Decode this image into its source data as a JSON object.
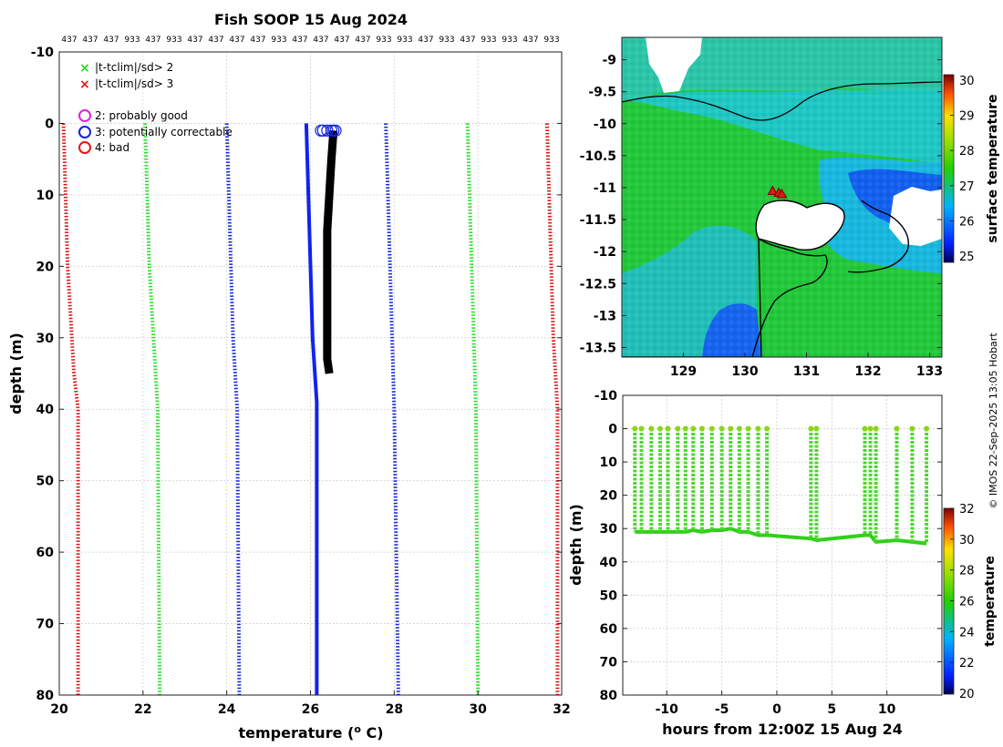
{
  "title": "Fish SOOP 15 Aug 2024",
  "top_labels": [
    "437",
    "437",
    "437",
    "933",
    "437",
    "933",
    "437",
    "437",
    "437",
    "437",
    "933",
    "437",
    "437",
    "437",
    "437",
    "933",
    "933",
    "437",
    "933",
    "437",
    "933",
    "933",
    "437",
    "933"
  ],
  "legend": {
    "flags": [
      {
        "label": "|t-tclim|/sd> 2",
        "color": "#22dd22",
        "marker": "x"
      },
      {
        "label": "|t-tclim|/sd> 3",
        "color": "#ee1111",
        "marker": "x"
      }
    ],
    "qc": [
      {
        "label": "2: probably good",
        "color": "#dd22dd"
      },
      {
        "label": "3: potentially correctable",
        "color": "#1122dd"
      },
      {
        "label": "4: bad",
        "color": "#ee1111"
      }
    ]
  },
  "credit": "© IMOS 22-Sep-2025 13:05 Hobart",
  "chart_data": [
    {
      "type": "line",
      "name": "profile",
      "xlabel": "temperature (",
      "xlabel_sup": "o",
      "xlabel_tail": " C)",
      "ylabel": "depth (m)",
      "xlim": [
        20,
        32
      ],
      "ylim": [
        -10,
        80
      ],
      "xticks": [
        20,
        22,
        24,
        26,
        28,
        30,
        32
      ],
      "yticks": [
        -10,
        0,
        10,
        20,
        30,
        40,
        50,
        60,
        70,
        80
      ],
      "grid": true,
      "series": [
        {
          "name": "climatology -3sd",
          "color": "#dd1111",
          "dotted": true,
          "depth": [
            0,
            10,
            20,
            30,
            35,
            40,
            80
          ],
          "temp": [
            20.1,
            20.15,
            20.2,
            20.3,
            20.35,
            20.45,
            20.45
          ]
        },
        {
          "name": "climatology -2sd",
          "color": "#22dd22",
          "dotted": true,
          "depth": [
            0,
            10,
            20,
            30,
            40,
            80
          ],
          "temp": [
            22.05,
            22.1,
            22.15,
            22.25,
            22.35,
            22.4
          ]
        },
        {
          "name": "climatology -1sd",
          "color": "#1122dd",
          "dotted": true,
          "depth": [
            0,
            10,
            20,
            30,
            40,
            80
          ],
          "temp": [
            24.0,
            24.05,
            24.1,
            24.15,
            24.25,
            24.3
          ]
        },
        {
          "name": "climatology +1sd",
          "color": "#1122dd",
          "dotted": true,
          "depth": [
            0,
            10,
            20,
            30,
            40,
            80
          ],
          "temp": [
            27.8,
            27.85,
            27.9,
            27.95,
            28.0,
            28.1
          ]
        },
        {
          "name": "climatology +2sd",
          "color": "#22dd22",
          "dotted": true,
          "depth": [
            0,
            10,
            20,
            30,
            40,
            80
          ],
          "temp": [
            29.75,
            29.8,
            29.85,
            29.9,
            29.95,
            30.0
          ]
        },
        {
          "name": "climatology +3sd",
          "color": "#dd1111",
          "dotted": true,
          "depth": [
            0,
            10,
            20,
            30,
            35,
            40,
            80
          ],
          "temp": [
            31.65,
            31.7,
            31.75,
            31.8,
            31.85,
            31.9,
            31.9
          ]
        },
        {
          "name": "climatology mean",
          "color": "#1122ee",
          "dotted": false,
          "width": 4,
          "depth": [
            0,
            10,
            20,
            30,
            39,
            40,
            80
          ],
          "temp": [
            25.9,
            25.95,
            26.0,
            26.05,
            26.15,
            26.15,
            26.15
          ]
        },
        {
          "name": "observed profiles",
          "color": "#000000",
          "dotted": false,
          "width": 9,
          "depth": [
            1,
            5,
            10,
            15,
            20,
            25,
            30,
            33,
            35
          ],
          "temp": [
            26.55,
            26.5,
            26.45,
            26.4,
            26.4,
            26.4,
            26.4,
            26.4,
            26.45
          ]
        }
      ],
      "qc_markers": [
        {
          "temp": 26.25,
          "depth": 1,
          "flag": 3
        },
        {
          "temp": 26.3,
          "depth": 1,
          "flag": 3
        },
        {
          "temp": 26.4,
          "depth": 1,
          "flag": 3
        },
        {
          "temp": 26.5,
          "depth": 1,
          "flag": 3
        },
        {
          "temp": 26.55,
          "depth": 1,
          "flag": 3
        },
        {
          "temp": 26.6,
          "depth": 1,
          "flag": 3
        }
      ]
    },
    {
      "type": "heatmap",
      "name": "map",
      "xlim": [
        128,
        133.2
      ],
      "ylim": [
        -13.65,
        -8.65
      ],
      "xticks": [
        129,
        130,
        131,
        132,
        133
      ],
      "yticks": [
        -9,
        -9.5,
        -10,
        -10.5,
        -11,
        -11.5,
        -12,
        -12.5,
        -13,
        -13.5
      ],
      "colorbar": {
        "label": "surface temperature",
        "min": 25,
        "max": 30,
        "ticks": [
          25,
          26,
          27,
          28,
          29,
          30
        ]
      },
      "stations": [
        {
          "lon": 130.45,
          "lat": -11.05
        },
        {
          "lon": 130.55,
          "lat": -11.08
        },
        {
          "lon": 130.6,
          "lat": -11.1
        }
      ]
    },
    {
      "type": "scatter",
      "name": "time-depth",
      "xlabel": "hours from 12:00Z 15 Aug 24",
      "ylabel": "depth (m)",
      "xlim": [
        -14,
        15
      ],
      "ylim": [
        -10,
        80
      ],
      "xticks": [
        -10,
        -5,
        0,
        5,
        10
      ],
      "yticks": [
        -10,
        0,
        10,
        20,
        30,
        40,
        50,
        60,
        70,
        80
      ],
      "grid": true,
      "colorbar": {
        "label": "temperature",
        "min": 20,
        "max": 32,
        "ticks": [
          20,
          22,
          24,
          26,
          28,
          30,
          32
        ]
      },
      "cast_times": [
        -12.9,
        -12.3,
        -11.4,
        -10.6,
        -9.9,
        -9.0,
        -8.3,
        -7.6,
        -6.8,
        -5.9,
        -5.0,
        -4.2,
        -3.4,
        -2.6,
        -1.7,
        -0.9,
        3.1,
        3.6,
        8.0,
        8.5,
        9.0,
        10.9,
        12.3,
        13.6
      ],
      "cast_bottoms": [
        31,
        31,
        31,
        31,
        31,
        31,
        31,
        30.5,
        31,
        30.5,
        30.5,
        30,
        31,
        31,
        32,
        32,
        33,
        33.5,
        32,
        32,
        34,
        33.5,
        34,
        34.5
      ]
    }
  ]
}
